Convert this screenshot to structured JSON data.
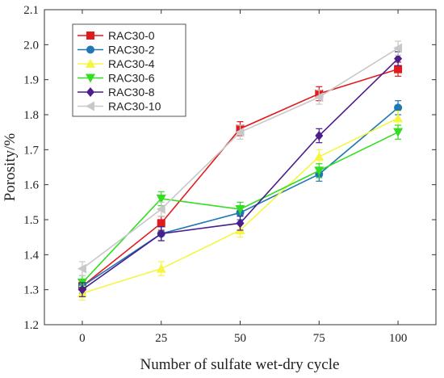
{
  "chart_data": {
    "type": "line",
    "xlabel": "Number of sulfate wet-dry cycle",
    "ylabel": "Porosity/%",
    "x": [
      0,
      25,
      50,
      75,
      100
    ],
    "xticks": [
      "0",
      "25",
      "50",
      "75",
      "100"
    ],
    "yticks": [
      "1.2",
      "1.3",
      "1.4",
      "1.5",
      "1.6",
      "1.7",
      "1.8",
      "1.9",
      "2.0",
      "2.1"
    ],
    "xlim": [
      -12,
      112
    ],
    "ylim": [
      1.2,
      2.1
    ],
    "grid": false,
    "legend_position": "top-left",
    "error_bar": 0.02,
    "series": [
      {
        "name": "RAC30-0",
        "color": "#e31a1c",
        "marker": "square",
        "values": [
          1.31,
          1.49,
          1.76,
          1.86,
          1.93
        ]
      },
      {
        "name": "RAC30-2",
        "color": "#1f78b4",
        "marker": "circle",
        "values": [
          1.31,
          1.46,
          1.52,
          1.63,
          1.82
        ]
      },
      {
        "name": "RAC30-4",
        "color": "#f5f542",
        "marker": "triangle-up",
        "values": [
          1.29,
          1.36,
          1.47,
          1.68,
          1.79
        ]
      },
      {
        "name": "RAC30-6",
        "color": "#33dd22",
        "marker": "triangle-down",
        "values": [
          1.32,
          1.56,
          1.53,
          1.64,
          1.75
        ]
      },
      {
        "name": "RAC30-8",
        "color": "#4b1e8c",
        "marker": "diamond",
        "values": [
          1.3,
          1.46,
          1.49,
          1.74,
          1.96
        ]
      },
      {
        "name": "RAC30-10",
        "color": "#c8c8c8",
        "marker": "triangle-left",
        "values": [
          1.36,
          1.53,
          1.75,
          1.85,
          1.99
        ]
      }
    ]
  }
}
